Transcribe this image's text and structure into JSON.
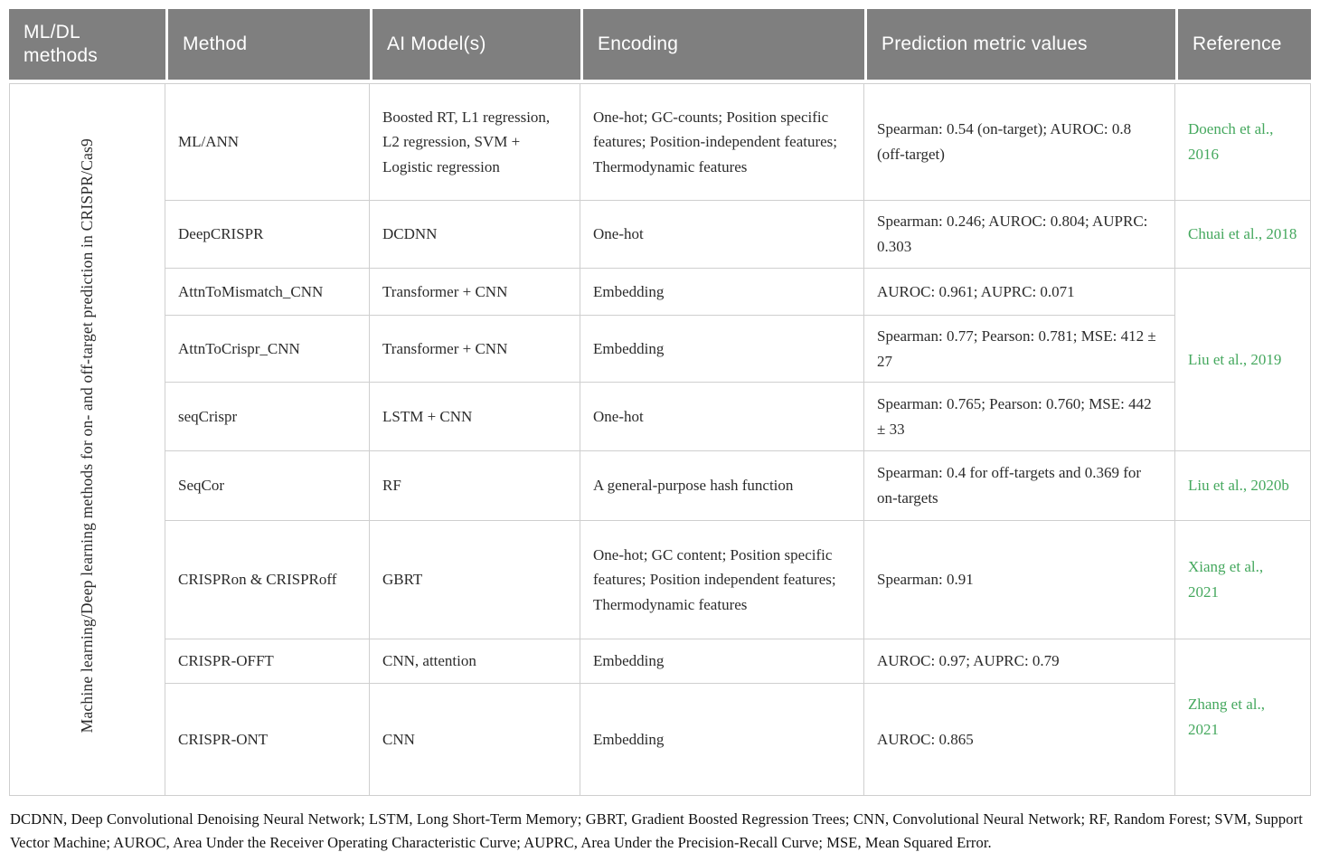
{
  "table": {
    "headers": {
      "group": "ML/DL methods",
      "method": "Method",
      "ai_models": "AI Model(s)",
      "encoding": "Encoding",
      "metrics": "Prediction metric values",
      "reference": "Reference"
    },
    "group_label": "Machine learning/Deep learning methods for on- and off-target prediction in CRISPR/Cas9",
    "rows": [
      {
        "method": "ML/ANN",
        "ai_models": "Boosted RT, L1 regression, L2 regression, SVM + Logistic regression",
        "encoding": "One-hot; GC-counts; Position specific features; Position-independent features; Thermodynamic features",
        "metrics": "Spearman: 0.54 (on-target); AUROC: 0.8 (off-target)",
        "reference": "Doench et al., 2016"
      },
      {
        "method": "DeepCRISPR",
        "ai_models": "DCDNN",
        "encoding": "One-hot",
        "metrics": "Spearman: 0.246; AUROC: 0.804; AUPRC: 0.303",
        "reference": "Chuai et al., 2018"
      },
      {
        "method": "AttnToMismatch_CNN",
        "ai_models": "Transformer + CNN",
        "encoding": "Embedding",
        "metrics": "AUROC: 0.961; AUPRC: 0.071",
        "reference": "Liu et al., 2019"
      },
      {
        "method": "AttnToCrispr_CNN",
        "ai_models": "Transformer + CNN",
        "encoding": "Embedding",
        "metrics": "Spearman: 0.77; Pearson: 0.781; MSE: 412 ± 27"
      },
      {
        "method": "seqCrispr",
        "ai_models": "LSTM + CNN",
        "encoding": "One-hot",
        "metrics": "Spearman: 0.765; Pearson: 0.760; MSE: 442 ± 33"
      },
      {
        "method": "SeqCor",
        "ai_models": "RF",
        "encoding": "A general-purpose hash function",
        "metrics": "Spearman: 0.4 for off-targets and 0.369 for on-targets",
        "reference": "Liu et al., 2020b"
      },
      {
        "method": "CRISPRon & CRISPRoff",
        "ai_models": "GBRT",
        "encoding": "One-hot; GC content; Position specific features; Position independent features; Thermodynamic features",
        "metrics": "Spearman: 0.91",
        "reference": "Xiang et al., 2021"
      },
      {
        "method": "CRISPR-OFFT",
        "ai_models": "CNN, attention",
        "encoding": "Embedding",
        "metrics": "AUROC: 0.97; AUPRC: 0.79",
        "reference": "Zhang et al., 2021"
      },
      {
        "method": "CRISPR-ONT",
        "ai_models": "CNN",
        "encoding": "Embedding",
        "metrics": "AUROC: 0.865"
      }
    ],
    "footnote": "DCDNN, Deep Convolutional Denoising Neural Network; LSTM, Long Short-Term Memory; GBRT, Gradient Boosted Regression Trees; CNN, Convolutional Neural Network; RF, Random Forest; SVM, Support Vector Machine; AUROC, Area Under the Receiver Operating Characteristic Curve; AUPRC, Area Under the Precision-Recall Curve; MSE, Mean Squared Error."
  },
  "colors": {
    "header_bg": "#7f7f7f",
    "header_text": "#ffffff",
    "reference_green": "#45a85e",
    "border": "#cfcfcf",
    "body_text": "#2b2b2b"
  }
}
